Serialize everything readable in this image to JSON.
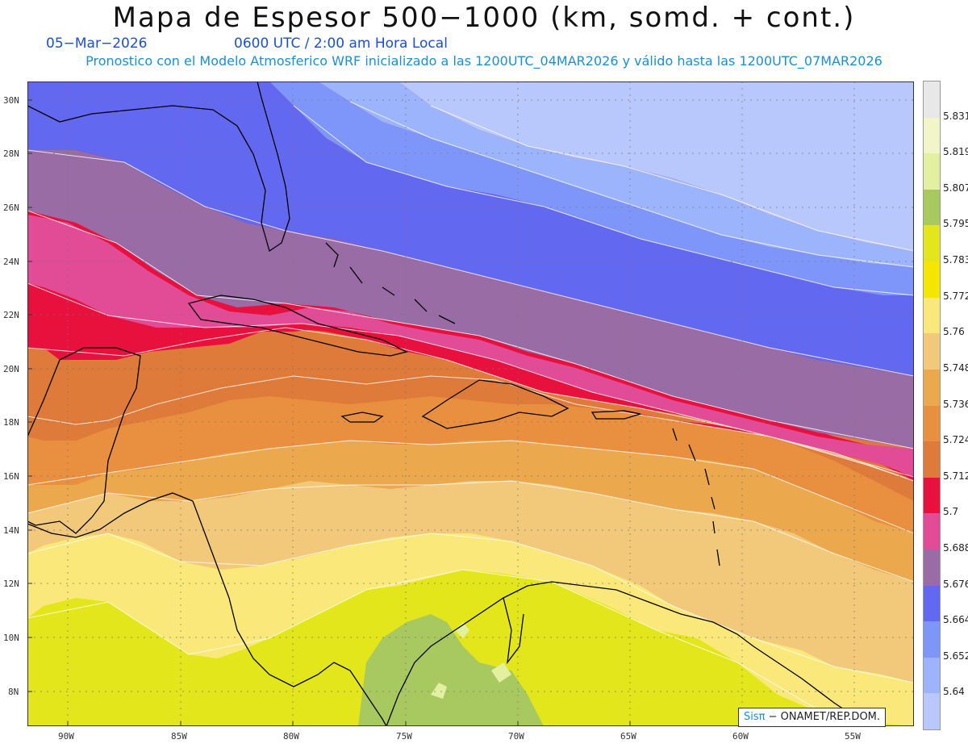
{
  "header": {
    "title": "Mapa de Espesor 500−1000 (km, somd. + cont.)",
    "date": "05−Mar−2026",
    "time": "0600 UTC / 2:00 am Hora Local",
    "description": "Pronostico con el Modelo Atmosferico WRF inicializado a las 1200UTC_04MAR2026 y válido hasta las  1200UTC_07MAR2026"
  },
  "axes": {
    "lat_labels": [
      "30N",
      "28N",
      "26N",
      "24N",
      "22N",
      "20N",
      "18N",
      "16N",
      "14N",
      "12N",
      "10N",
      "8N"
    ],
    "lon_labels": [
      "90W",
      "85W",
      "80W",
      "75W",
      "70W",
      "65W",
      "60W",
      "55W"
    ]
  },
  "colorbar": {
    "labels": [
      "5.831",
      "5.819",
      "5.807",
      "5.795",
      "5.783",
      "5.772",
      "5.76",
      "5.748",
      "5.736",
      "5.724",
      "5.712",
      "5.7",
      "5.688",
      "5.676",
      "5.664",
      "5.652",
      "5.64"
    ],
    "colors": [
      "#e8e8e8",
      "#f2f5c8",
      "#e2f0a0",
      "#a8c860",
      "#e2e61a",
      "#f5e600",
      "#fbe87a",
      "#f2c87a",
      "#eca84c",
      "#e89040",
      "#de7a3a",
      "#e8103c",
      "#e24c96",
      "#9a6ca6",
      "#6268f0",
      "#7e96fa",
      "#9cb4fc",
      "#b8c8fc"
    ]
  },
  "credit": {
    "brand": "Sisπ",
    "text": "− ONAMET/REP.DOM."
  }
}
